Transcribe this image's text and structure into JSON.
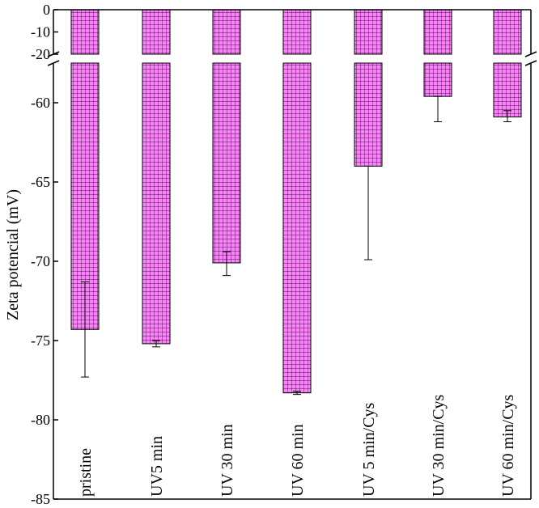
{
  "chart_data": {
    "type": "bar",
    "ylabel": "Zeta potencial (mV)",
    "categories": [
      "pristine",
      "UV5 min",
      "UV 30 min",
      "UV 60 min",
      "UV 5 min/Cys",
      "UV 30 min/Cys",
      "UV 60 min/Cys"
    ],
    "values": [
      -74.3,
      -75.2,
      -70.1,
      -78.3,
      -64.0,
      -59.6,
      -60.9
    ],
    "error_low": [
      -77.3,
      -75.4,
      -70.9,
      -78.4,
      -69.9,
      -61.2,
      -61.2
    ],
    "error_high": [
      -71.3,
      -75.0,
      -69.4,
      -78.2,
      -64.0,
      -59.6,
      -60.5
    ],
    "bar_color": "#ff80ff",
    "bar_pattern": "grid",
    "y_axis_break": true,
    "upper_segment": {
      "ylim": [
        -20,
        0
      ],
      "ticks": [
        "0",
        "-10",
        "-20"
      ]
    },
    "lower_segment": {
      "ylim": [
        -85,
        -57.5
      ],
      "ticks": [
        "-60",
        "-65",
        "-70",
        "-75",
        "-80",
        "-85"
      ]
    }
  }
}
